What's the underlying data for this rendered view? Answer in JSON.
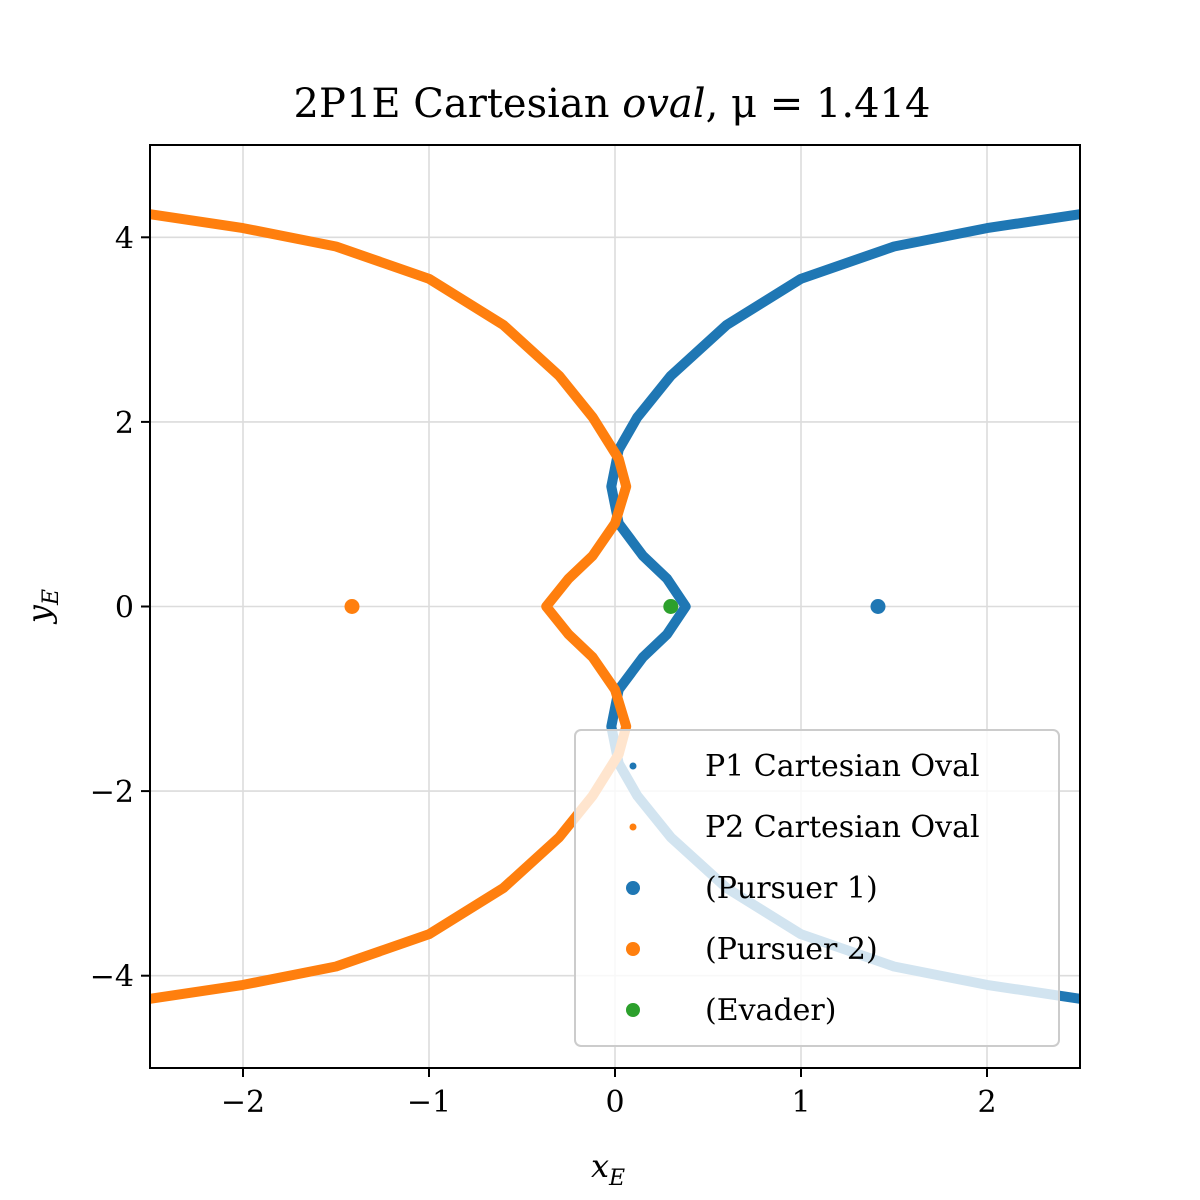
{
  "chart_data": {
    "type": "scatter",
    "title": "2P1E Cartesian oval, μ = 1.414",
    "title_parts": {
      "prefix": "2P1E Cartesian ",
      "italic_word": "oval",
      "suffix": ", μ = 1.414"
    },
    "mu": 1.414,
    "xlabel": {
      "base": "x",
      "sub": "E"
    },
    "ylabel": {
      "base": "y",
      "sub": "E"
    },
    "xlim": [
      -2.5,
      2.5
    ],
    "ylim": [
      -5,
      5
    ],
    "xticks": [
      -2,
      -1,
      0,
      1,
      2
    ],
    "yticks": [
      -4,
      -2,
      0,
      2,
      4
    ],
    "xtick_labels": [
      "−2",
      "−1",
      "0",
      "1",
      "2"
    ],
    "ytick_labels": [
      "−4",
      "−2",
      "0",
      "2",
      "4"
    ],
    "grid": true,
    "legend_position": "lower-right",
    "colors": {
      "p1": "#1f77b4",
      "p2": "#ff7f0e",
      "evader": "#2ca02c"
    },
    "series": [
      {
        "name": "P1 Cartesian Oval",
        "kind": "curve",
        "color": "#1f77b4",
        "points": [
          [
            2.5,
            -4.25
          ],
          [
            2.0,
            -4.1
          ],
          [
            1.5,
            -3.9
          ],
          [
            1.0,
            -3.55
          ],
          [
            0.6,
            -3.05
          ],
          [
            0.3,
            -2.5
          ],
          [
            0.12,
            -2.05
          ],
          [
            0.02,
            -1.7
          ],
          [
            -0.02,
            -1.3
          ],
          [
            0.02,
            -0.9
          ],
          [
            0.15,
            -0.55
          ],
          [
            0.28,
            -0.3
          ],
          [
            0.38,
            0.0
          ],
          [
            0.28,
            0.3
          ],
          [
            0.15,
            0.55
          ],
          [
            0.02,
            0.9
          ],
          [
            -0.02,
            1.3
          ],
          [
            0.02,
            1.7
          ],
          [
            0.12,
            2.05
          ],
          [
            0.3,
            2.5
          ],
          [
            0.6,
            3.05
          ],
          [
            1.0,
            3.55
          ],
          [
            1.5,
            3.9
          ],
          [
            2.0,
            4.1
          ],
          [
            2.5,
            4.25
          ]
        ]
      },
      {
        "name": "P2 Cartesian Oval",
        "kind": "curve",
        "color": "#ff7f0e",
        "points": [
          [
            -2.5,
            4.25
          ],
          [
            -2.0,
            4.1
          ],
          [
            -1.5,
            3.9
          ],
          [
            -1.0,
            3.55
          ],
          [
            -0.6,
            3.05
          ],
          [
            -0.3,
            2.5
          ],
          [
            -0.12,
            2.05
          ],
          [
            0.02,
            1.6
          ],
          [
            0.06,
            1.3
          ],
          [
            0.0,
            0.9
          ],
          [
            -0.12,
            0.55
          ],
          [
            -0.25,
            0.3
          ],
          [
            -0.37,
            0.0
          ],
          [
            -0.25,
            -0.3
          ],
          [
            -0.12,
            -0.55
          ],
          [
            0.0,
            -0.9
          ],
          [
            0.06,
            -1.3
          ],
          [
            0.02,
            -1.6
          ],
          [
            -0.12,
            -2.05
          ],
          [
            -0.3,
            -2.5
          ],
          [
            -0.6,
            -3.05
          ],
          [
            -1.0,
            -3.55
          ],
          [
            -1.5,
            -3.9
          ],
          [
            -2.0,
            -4.1
          ],
          [
            -2.5,
            -4.25
          ]
        ]
      },
      {
        "name": "(Pursuer 1)",
        "kind": "point",
        "color": "#1f77b4",
        "x": 1.414,
        "y": 0
      },
      {
        "name": "(Pursuer 2)",
        "kind": "point",
        "color": "#ff7f0e",
        "x": -1.414,
        "y": 0
      },
      {
        "name": "(Evader)",
        "kind": "point",
        "color": "#2ca02c",
        "x": 0.3,
        "y": 0
      }
    ]
  }
}
